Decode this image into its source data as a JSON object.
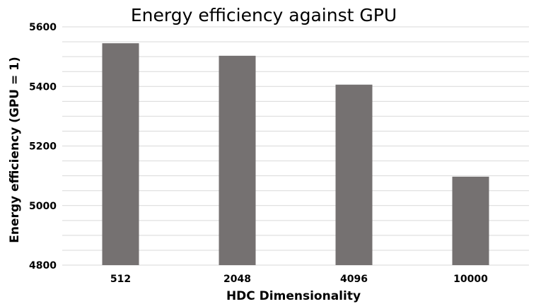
{
  "chart_data": {
    "type": "bar",
    "title": "Energy efficiency against GPU",
    "xlabel": "HDC Dimensionality",
    "ylabel": "Energy efficiency (GPU = 1)",
    "categories": [
      "512",
      "2048",
      "4096",
      "10000"
    ],
    "values": [
      5545,
      5503,
      5406,
      5097
    ],
    "ylim": [
      4800,
      5600
    ],
    "yticks": [
      4800,
      5000,
      5200,
      5400,
      5600
    ],
    "grid": true,
    "bar_color": "#757171",
    "gridline_color": "#d9d9d9",
    "legend": "none"
  }
}
